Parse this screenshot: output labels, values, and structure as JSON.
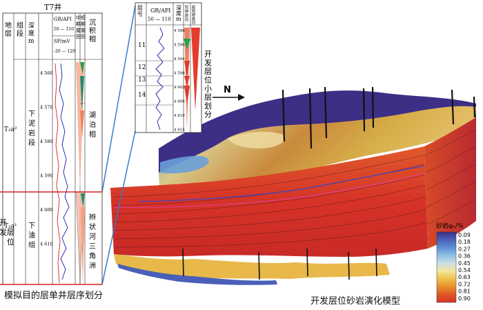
{
  "well_panel": {
    "well_title": "T7井",
    "headers": {
      "stratum": "地层",
      "member": "组段",
      "depth": "深度/m",
      "gr": "GR/API",
      "gr_range": "50 — 110",
      "sp": "SP/mV",
      "sp_range": "-20 — 120",
      "mid_cycle": "中期旋回",
      "short_cycle": "短期旋回",
      "facies": "沉积相"
    },
    "depth_ticks": [
      "4 560",
      "4 570",
      "4 580",
      "4 590",
      "4 600",
      "4 610"
    ],
    "upper": {
      "stratum": "T₂a²",
      "member": "下泥岩段",
      "facies": "湖泊相"
    },
    "lower": {
      "stratum": "T₂a¹",
      "member": "下油组",
      "facies": "辫状河三角洲"
    },
    "dev_layer": "开发层位",
    "caption": "模拟目的层单井层序划分"
  },
  "zoom_panel": {
    "headers": {
      "layer": "层号",
      "gr": "GR/API",
      "gr_range": "50 — 110",
      "depth": "深度/m",
      "short_cycle": "短期旋回",
      "ultra_short": "超短期旋回"
    },
    "layers": [
      "11",
      "12",
      "13",
      "14"
    ],
    "depth_ticks": [
      "4 586",
      "4 590",
      "4 594",
      "4 598",
      "4 602",
      "4 606",
      "4 610",
      "4 614"
    ],
    "caption": "开发层位小层划分"
  },
  "model": {
    "north": "N",
    "caption": "开发层位砂岩演化模型",
    "legend_title": "砂岩φₑ/%",
    "legend_values": [
      "0.09",
      "0.18",
      "0.27",
      "0.36",
      "0.45",
      "0.54",
      "0.63",
      "0.72",
      "0.81",
      "0.90"
    ],
    "legend_colors": [
      "#3b2f86",
      "#4a5fb8",
      "#5e8fd3",
      "#8fbfe2",
      "#c8dde6",
      "#f2e6a0",
      "#efc24a",
      "#e7932e",
      "#de5a24",
      "#d63228"
    ]
  }
}
